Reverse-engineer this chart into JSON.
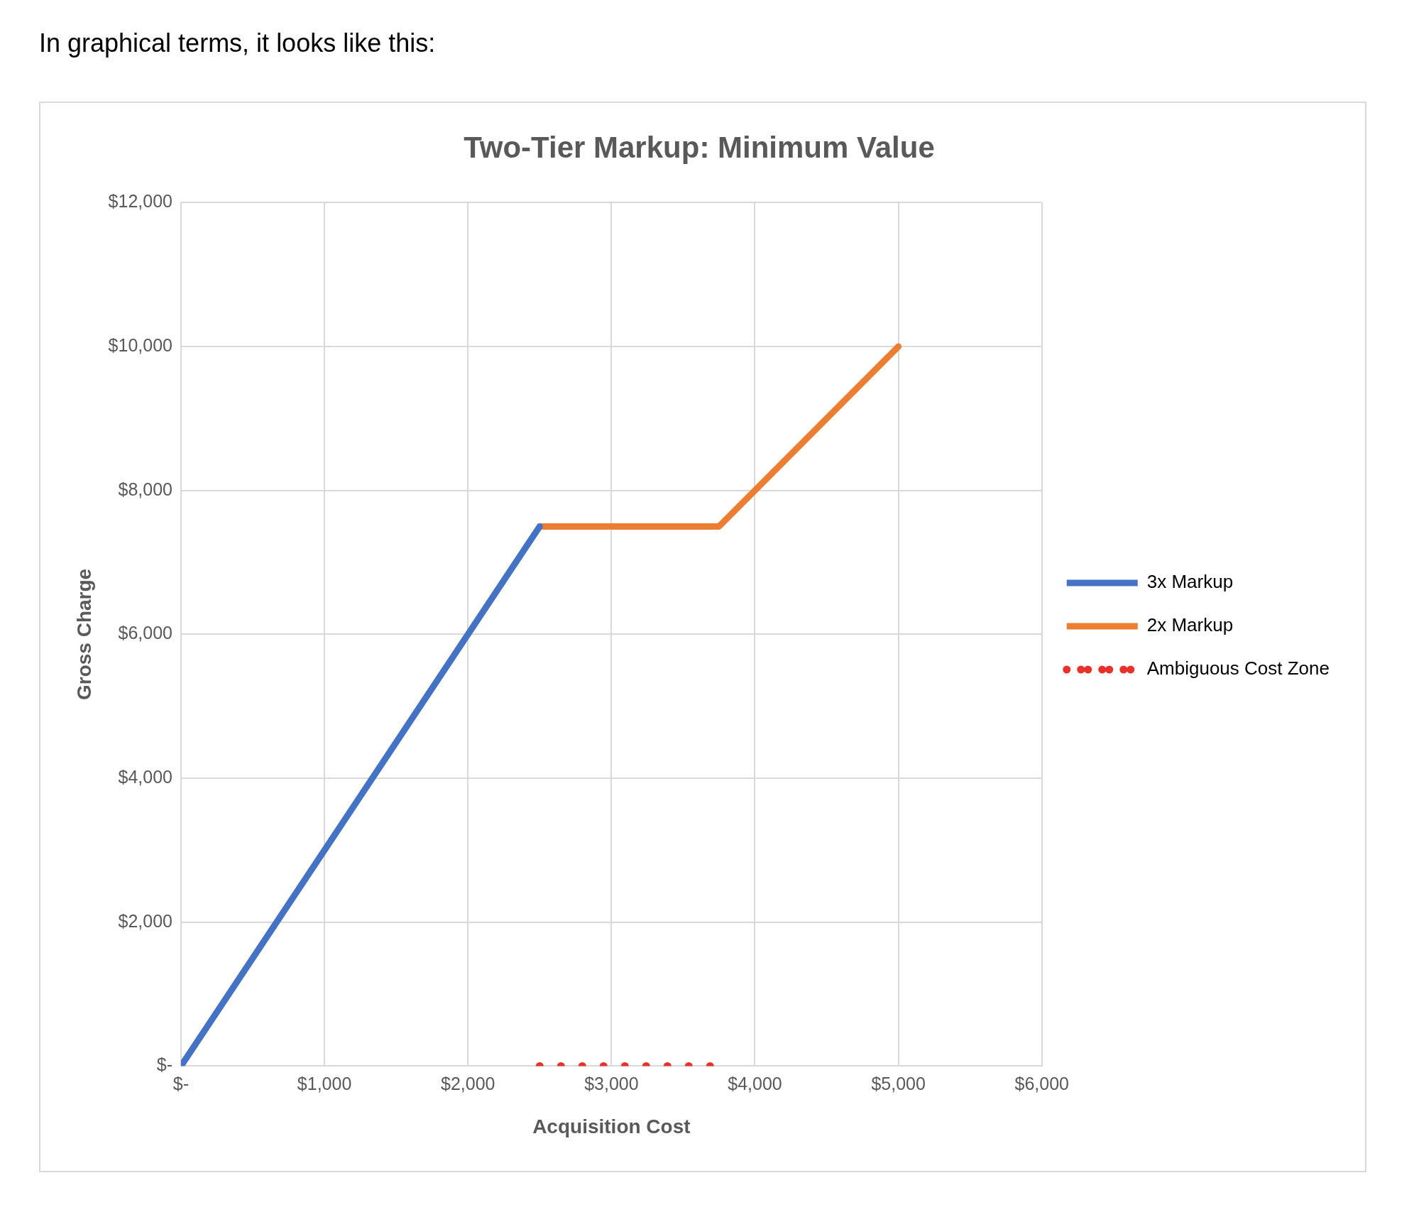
{
  "chart_data": {
    "type": "line",
    "title": "Two-Tier Markup: Minimum Value",
    "xlabel": "Acquisition Cost",
    "ylabel": "Gross Charge",
    "annotations": [
      "In graphical terms, it looks like this:"
    ],
    "series": [
      {
        "name": "3x Markup",
        "color": "#4472c4",
        "x": [
          0,
          2500
        ],
        "values": [
          0,
          7500
        ],
        "line_style": "solid"
      },
      {
        "name": "2x Markup",
        "color": "#ed7d31",
        "x": [
          2500,
          3750,
          5000
        ],
        "values": [
          7500,
          7500,
          10000
        ],
        "line_style": "solid"
      },
      {
        "name": "Ambiguous Cost Zone",
        "color": "#e8312a",
        "x": [
          2500,
          3750
        ],
        "values": [
          0,
          0
        ],
        "line_style": "dotted"
      }
    ],
    "xlim": [
      0,
      6000
    ],
    "ylim": [
      0,
      12000
    ],
    "xticks": [
      {
        "value": 0,
        "label": "$-"
      },
      {
        "value": 1000,
        "label": "$1,000"
      },
      {
        "value": 2000,
        "label": "$2,000"
      },
      {
        "value": 3000,
        "label": "$3,000"
      },
      {
        "value": 4000,
        "label": "$4,000"
      },
      {
        "value": 5000,
        "label": "$5,000"
      },
      {
        "value": 6000,
        "label": "$6,000"
      }
    ],
    "yticks": [
      {
        "value": 0,
        "label": "$-"
      },
      {
        "value": 2000,
        "label": "$2,000"
      },
      {
        "value": 4000,
        "label": "$4,000"
      },
      {
        "value": 6000,
        "label": "$6,000"
      },
      {
        "value": 8000,
        "label": "$8,000"
      },
      {
        "value": 10000,
        "label": "$10,000"
      },
      {
        "value": 12000,
        "label": "$12,000"
      }
    ],
    "grid": true,
    "legend": "right",
    "marker": "none"
  }
}
